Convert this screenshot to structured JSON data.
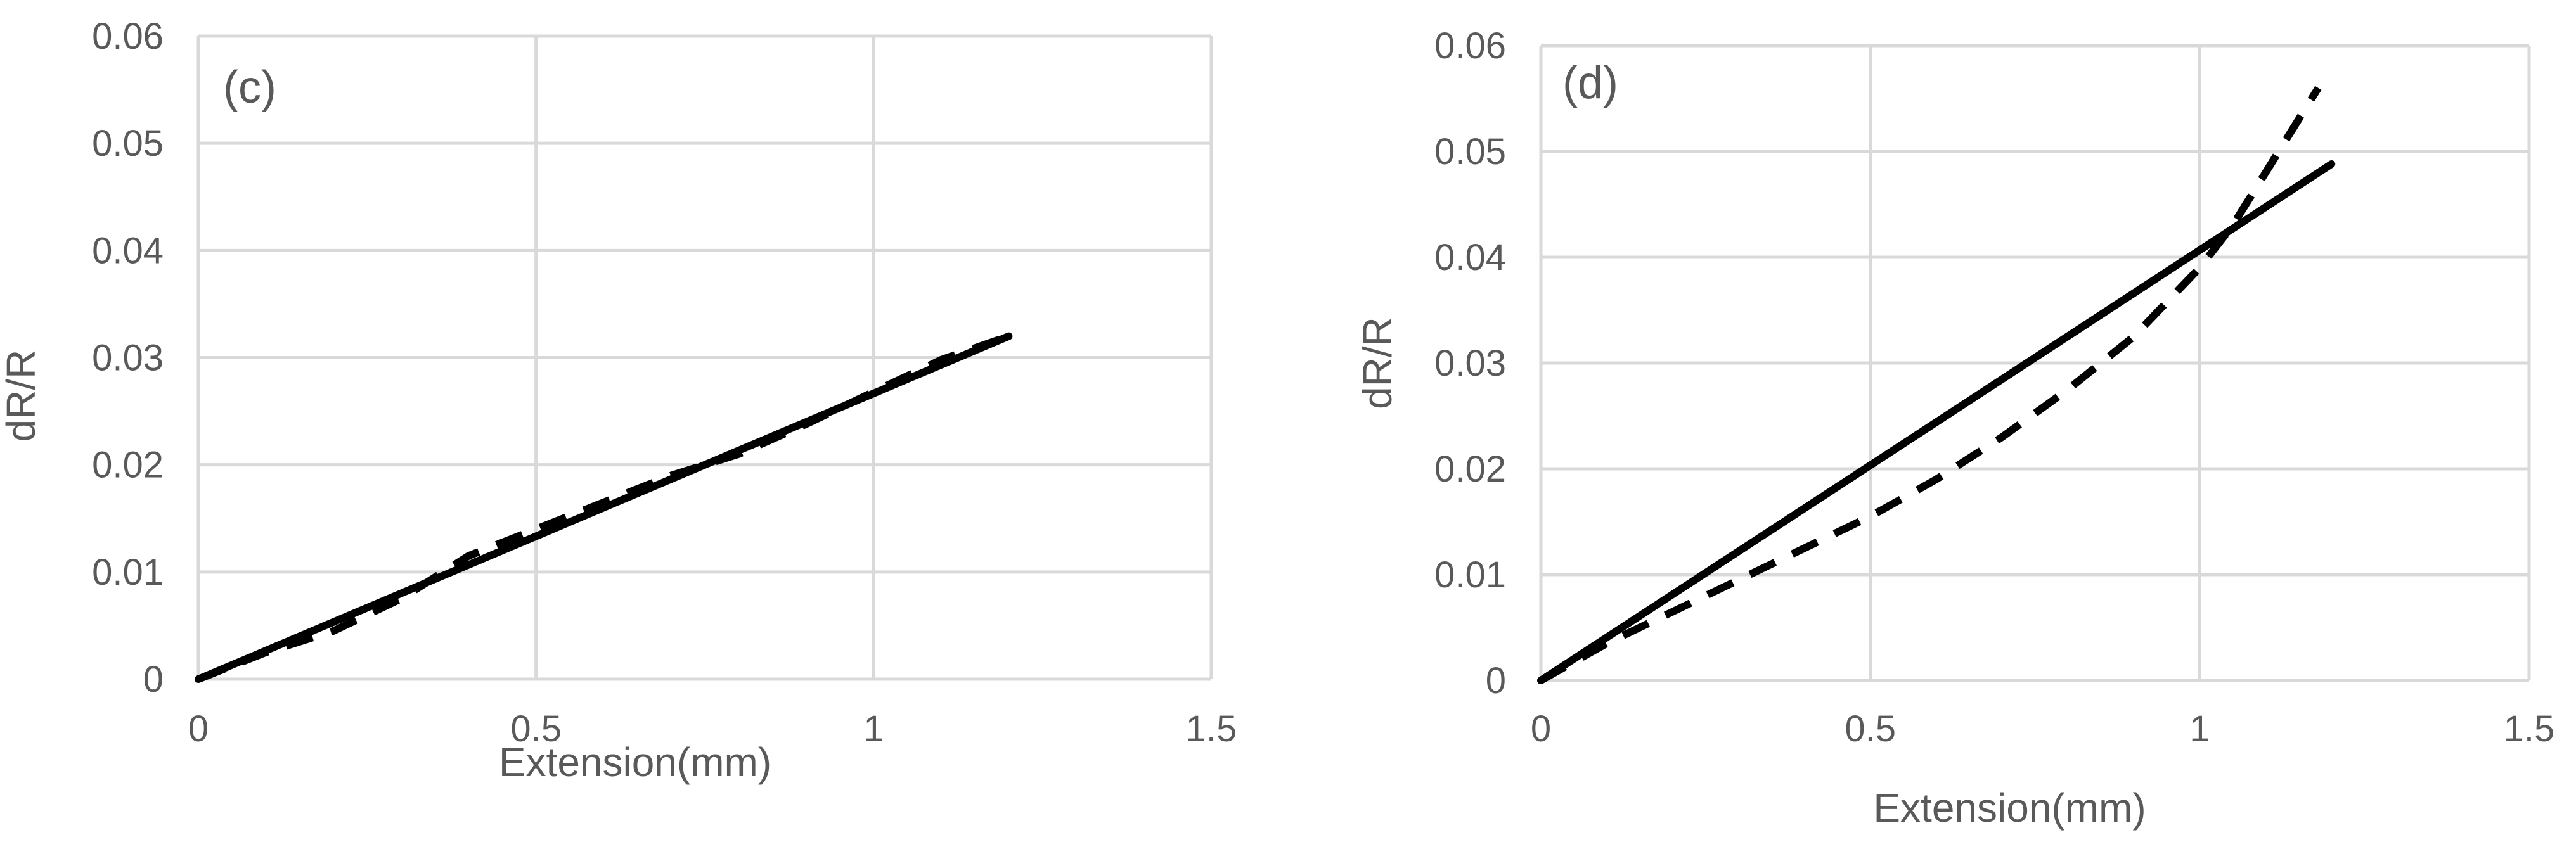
{
  "chart_data": [
    {
      "type": "line",
      "panel_label": "(c)",
      "xlabel": "Extension(mm)",
      "ylabel": "dR/R",
      "xlim": [
        0,
        1.5
      ],
      "ylim": [
        0,
        0.06
      ],
      "xticks": [
        0,
        0.5,
        1,
        1.5
      ],
      "xtick_labels": [
        "0",
        "0.5",
        "1",
        "1.5"
      ],
      "yticks": [
        0,
        0.01,
        0.02,
        0.03,
        0.04,
        0.05,
        0.06
      ],
      "ytick_labels": [
        "0",
        "0.01",
        "0.02",
        "0.03",
        "0.04",
        "0.05",
        "0.06"
      ],
      "grid": true,
      "series": [
        {
          "style": "solid",
          "color": "#000000",
          "x": [
            0,
            1.2
          ],
          "y": [
            0,
            0.032
          ]
        },
        {
          "style": "dashed",
          "color": "#000000",
          "x": [
            0,
            0.1,
            0.2,
            0.3,
            0.4,
            0.5,
            0.6,
            0.7,
            0.8,
            0.9,
            1.0,
            1.1,
            1.2
          ],
          "y": [
            0,
            0.0025,
            0.0045,
            0.0075,
            0.0115,
            0.014,
            0.0165,
            0.019,
            0.021,
            0.0238,
            0.0268,
            0.0298,
            0.032
          ]
        }
      ]
    },
    {
      "type": "line",
      "panel_label": "(d)",
      "xlabel": "Extension(mm)",
      "ylabel": "dR/R",
      "xlim": [
        0,
        1.5
      ],
      "ylim": [
        0,
        0.06
      ],
      "xticks": [
        0,
        0.5,
        1,
        1.5
      ],
      "xtick_labels": [
        "0",
        "0.5",
        "1",
        "1.5"
      ],
      "yticks": [
        0,
        0.01,
        0.02,
        0.03,
        0.04,
        0.05,
        0.06
      ],
      "ytick_labels": [
        "0",
        "0.01",
        "0.02",
        "0.03",
        "0.04",
        "0.05",
        "0.06"
      ],
      "grid": true,
      "series": [
        {
          "style": "solid",
          "color": "#000000",
          "x": [
            0,
            1.2
          ],
          "y": [
            0,
            0.0488
          ]
        },
        {
          "style": "dashed",
          "color": "#000000",
          "x": [
            0,
            0.1,
            0.2,
            0.3,
            0.4,
            0.5,
            0.6,
            0.7,
            0.8,
            0.9,
            1.0,
            1.05,
            1.1,
            1.15,
            1.18
          ],
          "y": [
            0,
            0.0035,
            0.0065,
            0.0095,
            0.0125,
            0.0155,
            0.019,
            0.023,
            0.0275,
            0.0325,
            0.039,
            0.043,
            0.048,
            0.053,
            0.056
          ]
        }
      ]
    }
  ]
}
